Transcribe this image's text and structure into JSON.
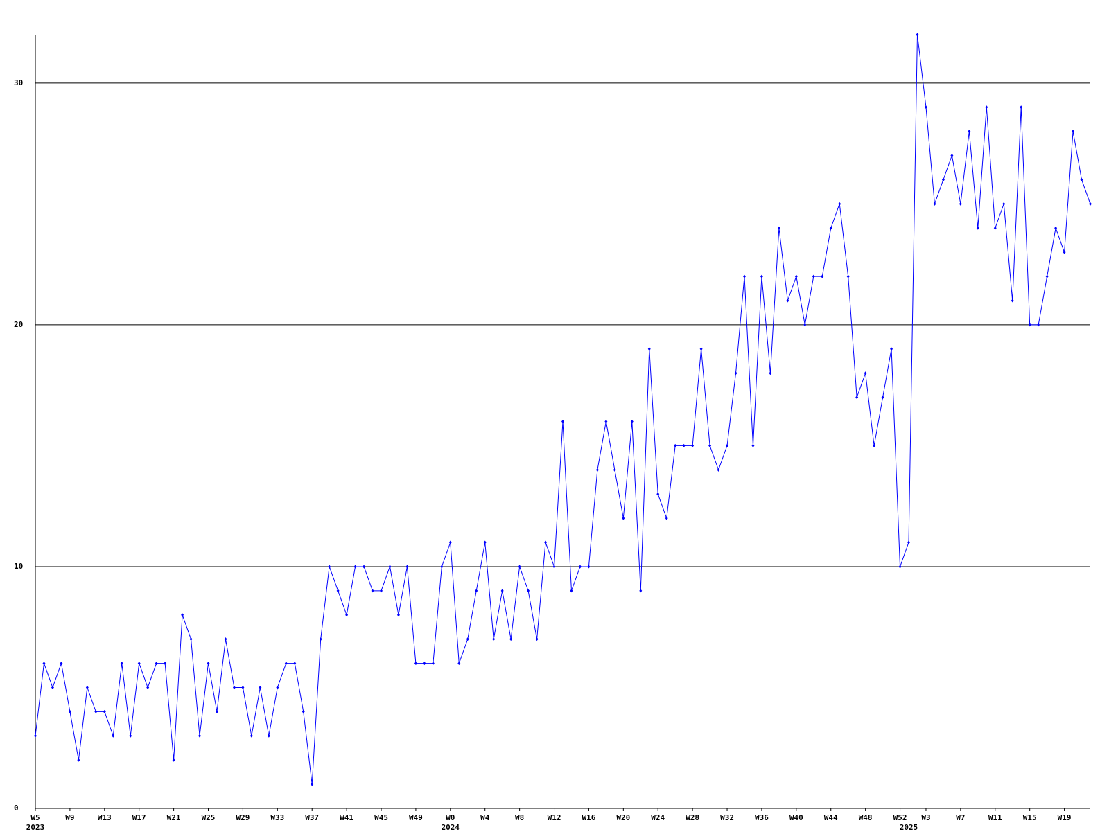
{
  "chart_data": {
    "type": "line",
    "categories": [
      "W5",
      null,
      null,
      null,
      "W9",
      null,
      null,
      null,
      "W13",
      null,
      null,
      null,
      "W17",
      null,
      null,
      null,
      "W21",
      null,
      null,
      null,
      "W25",
      null,
      null,
      null,
      "W29",
      null,
      null,
      null,
      "W33",
      null,
      null,
      null,
      "W37",
      null,
      null,
      null,
      "W41",
      null,
      null,
      null,
      "W45",
      null,
      null,
      null,
      "W49",
      null,
      null,
      null,
      "W0",
      null,
      null,
      null,
      "W4",
      null,
      null,
      null,
      "W8",
      null,
      null,
      null,
      "W12",
      null,
      null,
      null,
      "W16",
      null,
      null,
      null,
      "W20",
      null,
      null,
      null,
      "W24",
      null,
      null,
      null,
      "W28",
      null,
      null,
      null,
      "W32",
      null,
      null,
      null,
      "W36",
      null,
      null,
      null,
      "W40",
      null,
      null,
      null,
      "W44",
      null,
      null,
      null,
      "W48",
      null,
      null,
      null,
      "W52",
      null,
      null,
      "W3",
      null,
      null,
      null,
      "W7",
      null,
      null,
      null,
      "W11",
      null,
      null,
      null,
      "W15",
      null,
      null,
      null,
      "W19",
      null,
      null,
      null
    ],
    "x_group_labels": [
      "2023",
      null,
      null,
      null,
      null,
      null,
      null,
      null,
      null,
      null,
      null,
      null,
      null,
      null,
      null,
      null,
      null,
      null,
      null,
      null,
      null,
      null,
      null,
      null,
      null,
      null,
      null,
      null,
      null,
      null,
      null,
      null,
      null,
      null,
      null,
      null,
      null,
      null,
      null,
      null,
      null,
      null,
      null,
      null,
      null,
      null,
      null,
      null,
      "2024",
      null,
      null,
      null,
      null,
      null,
      null,
      null,
      null,
      null,
      null,
      null,
      null,
      null,
      null,
      null,
      null,
      null,
      null,
      null,
      null,
      null,
      null,
      null,
      null,
      null,
      null,
      null,
      null,
      null,
      null,
      null,
      null,
      null,
      null,
      null,
      null,
      null,
      null,
      null,
      null,
      null,
      null,
      null,
      null,
      null,
      null,
      null,
      null,
      null,
      null,
      null,
      null,
      "2025",
      null,
      null,
      null,
      null,
      null,
      null,
      null,
      null,
      null,
      null,
      null,
      null,
      null,
      null,
      null,
      null,
      null,
      null,
      null,
      null
    ],
    "series": [
      {
        "color": "#0000ff",
        "values": [
          3,
          6,
          5,
          6,
          4,
          2,
          5,
          4,
          4,
          3,
          6,
          3,
          6,
          5,
          6,
          6,
          2,
          8,
          7,
          3,
          6,
          4,
          7,
          5,
          5,
          3,
          5,
          3,
          5,
          6,
          6,
          4,
          1,
          7,
          10,
          9,
          8,
          10,
          10,
          9,
          9,
          10,
          8,
          10,
          6,
          6,
          6,
          10,
          11,
          6,
          7,
          9,
          11,
          7,
          9,
          7,
          10,
          9,
          7,
          11,
          10,
          16,
          9,
          10,
          10,
          14,
          16,
          14,
          12,
          16,
          9,
          19,
          13,
          12,
          15,
          15,
          15,
          19,
          15,
          14,
          15,
          18,
          22,
          15,
          22,
          18,
          24,
          21,
          22,
          20,
          22,
          22,
          24,
          25,
          22,
          17,
          18,
          15,
          17,
          19,
          10,
          11,
          32,
          29,
          25,
          26,
          27,
          25,
          28,
          24,
          29,
          24,
          25,
          21,
          29,
          20,
          20,
          22,
          24,
          23,
          28,
          26,
          25
        ]
      }
    ],
    "ylim": [
      0,
      32
    ],
    "yticks": [
      0,
      10,
      20,
      30
    ],
    "grid": true
  }
}
